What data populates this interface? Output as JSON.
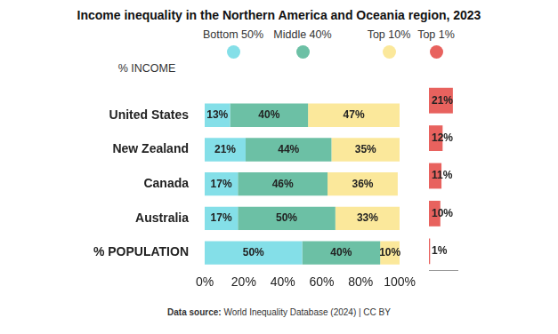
{
  "title": "Income inequality in the Northern America and Oceania region, 2023",
  "legend_title": "% INCOME",
  "source_label": "Data source:",
  "source": "World Inequality Database (2024) | CC BY",
  "chart_data": [
    {
      "type": "bar",
      "orientation": "horizontal",
      "stacked": true,
      "grid": false,
      "data_labels": true,
      "legend": "top",
      "categories": [
        "United States",
        "New Zealand",
        "Canada",
        "Australia",
        "% POPULATION"
      ],
      "series": [
        {
          "name": "Bottom 50%",
          "color": "#84dfe8",
          "values": [
            13,
            21,
            17,
            17,
            50
          ],
          "value_labels": [
            "13%",
            "21%",
            "17%",
            "17%",
            "50%"
          ]
        },
        {
          "name": "Middle 40%",
          "color": "#6cc0a5",
          "values": [
            40,
            44,
            46,
            50,
            40
          ],
          "value_labels": [
            "40%",
            "44%",
            "46%",
            "50%",
            "40%"
          ]
        },
        {
          "name": "Top 10%",
          "color": "#fbe89b",
          "values": [
            47,
            35,
            36,
            33,
            10
          ],
          "value_labels": [
            "47%",
            "35%",
            "36%",
            "33%",
            "10%"
          ]
        }
      ],
      "xlim": [
        0,
        100
      ],
      "xticks": [
        {
          "value": 0,
          "label": "0%"
        },
        {
          "value": 20,
          "label": "20%"
        },
        {
          "value": 40,
          "label": "40%"
        },
        {
          "value": 60,
          "label": "60%"
        },
        {
          "value": 80,
          "label": "80%"
        },
        {
          "value": 100,
          "label": "100%"
        }
      ]
    },
    {
      "type": "bar",
      "orientation": "horizontal",
      "grid": false,
      "data_labels": true,
      "tick_labels": false,
      "categories": [
        null,
        null,
        null,
        null,
        null
      ],
      "series": [
        {
          "name": "Top 1%",
          "color": "#e8625e",
          "values": [
            21,
            12,
            11,
            10,
            1
          ],
          "value_labels": [
            "21%",
            "12%",
            "11%",
            "10%",
            "1%"
          ]
        }
      ],
      "xlim": [
        0,
        25
      ],
      "xticks": []
    }
  ]
}
